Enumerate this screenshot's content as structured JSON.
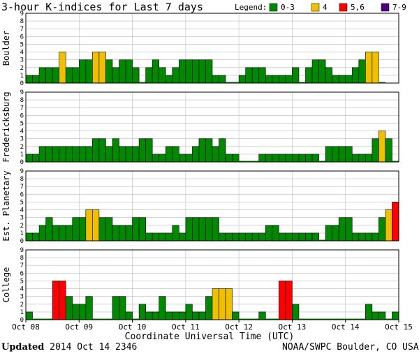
{
  "title": "3-hour K-indices for Last 7 days",
  "legend": {
    "label": "Legend:",
    "items": [
      {
        "label": "0-3",
        "color": "#008800"
      },
      {
        "label": "4",
        "color": "#f0c000"
      },
      {
        "label": "5,6",
        "color": "#ff0000"
      },
      {
        "label": "7-9",
        "color": "#4b0082"
      }
    ]
  },
  "footer": {
    "updated_label": "Updated",
    "updated_value": "2014 Oct 14 2346",
    "credit": "NOAA/SWPC Boulder, CO USA"
  },
  "chart_data": {
    "type": "bar",
    "xlabel": "Coordinate Universal Time (UTC)",
    "x_tick_labels": [
      "Oct 08",
      "Oct 09",
      "Oct 10",
      "Oct 11",
      "Oct 12",
      "Oct 13",
      "Oct 14",
      "Oct 15"
    ],
    "y_ticks": [
      0,
      1,
      2,
      3,
      4,
      5,
      6,
      7,
      8,
      9
    ],
    "ylim": [
      0,
      9
    ],
    "bins_per_day": 8,
    "series": [
      {
        "name": "Boulder",
        "values": [
          1,
          1,
          2,
          2,
          2,
          4,
          2,
          2,
          3,
          3,
          4,
          4,
          3,
          2,
          3,
          3,
          2,
          0,
          2,
          3,
          2,
          1,
          2,
          3,
          3,
          3,
          3,
          3,
          1,
          1,
          0,
          0,
          1,
          2,
          2,
          2,
          1,
          1,
          1,
          1,
          2,
          0,
          2,
          3,
          3,
          2,
          1,
          1,
          1,
          2,
          3,
          4,
          4,
          0
        ]
      },
      {
        "name": "Fredericksburg",
        "values": [
          1,
          1,
          2,
          2,
          2,
          2,
          2,
          2,
          2,
          2,
          3,
          3,
          2,
          3,
          2,
          2,
          2,
          3,
          3,
          1,
          1,
          2,
          2,
          1,
          1,
          2,
          3,
          3,
          2,
          3,
          1,
          1,
          0,
          0,
          0,
          1,
          1,
          1,
          1,
          1,
          1,
          1,
          1,
          1,
          0,
          2,
          2,
          2,
          2,
          1,
          1,
          1,
          3,
          4,
          3,
          0
        ]
      },
      {
        "name": "Est. Planetary",
        "values": [
          1,
          1,
          2,
          3,
          2,
          2,
          2,
          3,
          3,
          4,
          4,
          3,
          3,
          2,
          2,
          2,
          3,
          3,
          1,
          1,
          1,
          1,
          2,
          1,
          3,
          3,
          3,
          3,
          3,
          1,
          1,
          1,
          1,
          1,
          1,
          1,
          2,
          2,
          1,
          1,
          1,
          1,
          1,
          1,
          0,
          2,
          2,
          3,
          3,
          1,
          1,
          1,
          1,
          3,
          4,
          5
        ]
      },
      {
        "name": "College",
        "values": [
          1,
          0,
          0,
          0,
          5,
          5,
          3,
          2,
          2,
          3,
          0,
          0,
          0,
          3,
          3,
          1,
          0,
          2,
          1,
          1,
          3,
          1,
          1,
          1,
          2,
          1,
          1,
          3,
          4,
          4,
          4,
          1,
          0,
          0,
          0,
          1,
          0,
          0,
          5,
          5,
          2,
          0,
          0,
          0,
          0,
          0,
          0,
          0,
          0,
          0,
          0,
          2,
          1,
          1,
          0,
          1
        ]
      }
    ]
  }
}
